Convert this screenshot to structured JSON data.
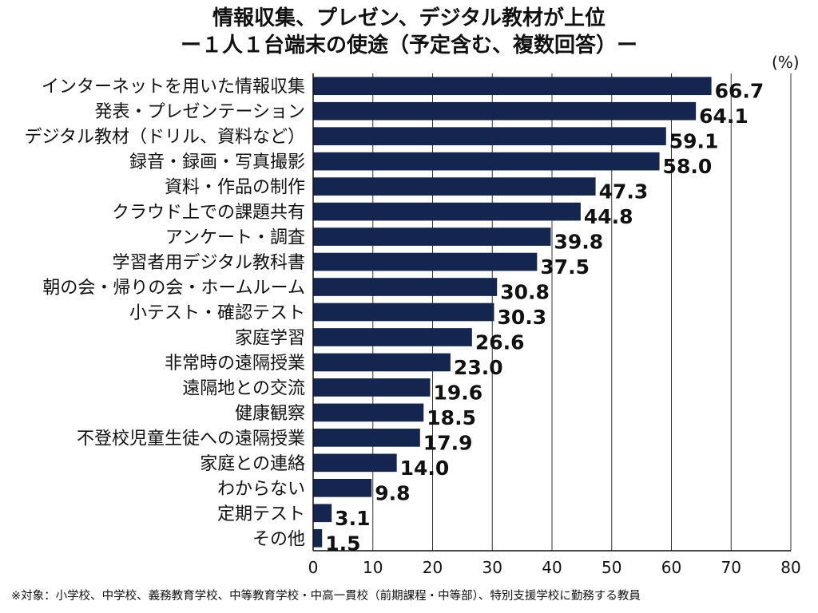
{
  "chart_data": {
    "type": "bar",
    "orientation": "horizontal",
    "title": "情報収集、プレゼン、デジタル教材が上位",
    "subtitle": "ー１人１台端末の使途（予定含む、複数回答）ー",
    "unit": "(%)",
    "footnote": "※対象：小学校、中学校、義務教育学校、中等教育学校・中高一貫校（前期課程・中等部）、特別支援学校に勤務する教員",
    "categories": [
      "インターネットを用いた情報収集",
      "発表・プレゼンテーション",
      "デジタル教材（ドリル、資料など）",
      "録音・録画・写真撮影",
      "資料・作品の制作",
      "クラウド上での課題共有",
      "アンケート・調査",
      "学習者用デジタル教科書",
      "朝の会・帰りの会・ホームルーム",
      "小テスト・確認テスト",
      "家庭学習",
      "非常時の遠隔授業",
      "遠隔地との交流",
      "健康観察",
      "不登校児童生徒への遠隔授業",
      "家庭との連絡",
      "わからない",
      "定期テスト",
      "その他"
    ],
    "values": [
      66.7,
      64.1,
      59.1,
      58.0,
      47.3,
      44.8,
      39.8,
      37.5,
      30.8,
      30.3,
      26.6,
      23.0,
      19.6,
      18.5,
      17.9,
      14.0,
      9.8,
      3.1,
      1.5
    ],
    "value_labels": [
      "66.7",
      "64.1",
      "59.1",
      "58.0",
      "47.3",
      "44.8",
      "39.8",
      "37.5",
      "30.8",
      "30.3",
      "26.6",
      "23.0",
      "19.6",
      "18.5",
      "17.9",
      "14.0",
      "9.8",
      "3.1",
      "1.5"
    ],
    "xlim": [
      0,
      80
    ],
    "xticks": [
      0,
      10,
      20,
      30,
      40,
      50,
      60,
      70,
      80
    ],
    "grid": "vertical",
    "legend": "none",
    "bar_color": "#14264f"
  }
}
